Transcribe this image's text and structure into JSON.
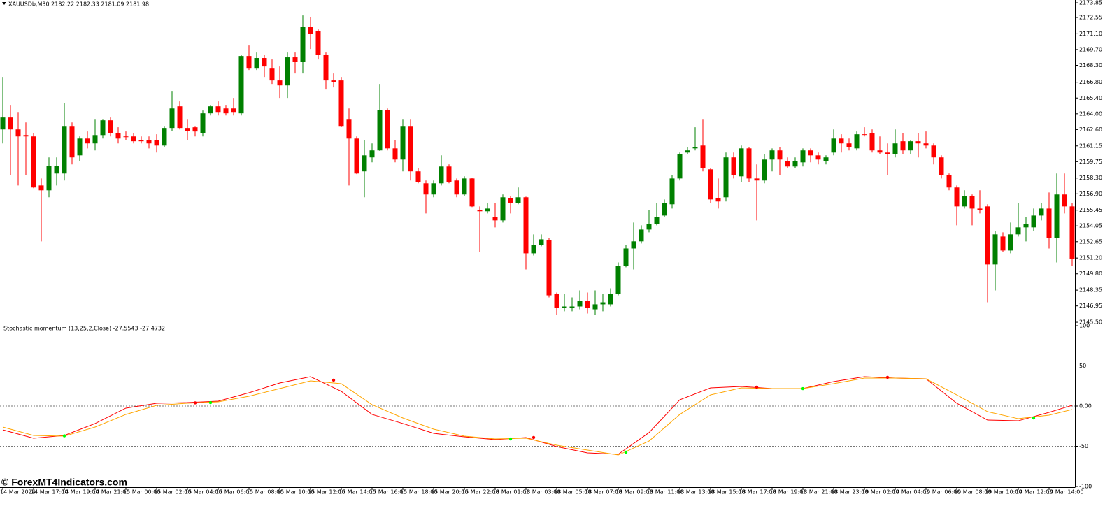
{
  "chart_data": [
    {
      "type": "candlestick",
      "title": "XAUUSDb,M30  2182.22 2182.33 2181.09 2181.98",
      "categories": [
        "14 Mar 2024",
        null,
        null,
        null,
        "14 Mar 17:00",
        null,
        null,
        null,
        "14 Mar 19:00",
        null,
        null,
        null,
        "14 Mar 21:00",
        null,
        null,
        null,
        "15 Mar 00:00",
        null,
        null,
        null,
        "15 Mar 02:00",
        null,
        null,
        null,
        "15 Mar 04:00",
        null,
        null,
        null,
        "15 Mar 06:00",
        null,
        null,
        null,
        "15 Mar 08:00",
        null,
        null,
        null,
        "15 Mar 10:00",
        null,
        null,
        null,
        "15 Mar 12:00",
        null,
        null,
        null,
        "15 Mar 14:00",
        null,
        null,
        null,
        "15 Mar 16:00",
        null,
        null,
        null,
        "15 Mar 18:00",
        null,
        null,
        null,
        "15 Mar 20:00",
        null,
        null,
        null,
        "15 Mar 22:00",
        null,
        null,
        null,
        "18 Mar 01:00",
        null,
        null,
        null,
        "18 Mar 03:00",
        null,
        null,
        null,
        "18 Mar 05:00",
        null,
        null,
        null,
        "18 Mar 07:00",
        null,
        null,
        null,
        "18 Mar 09:00",
        null,
        null,
        null,
        "18 Mar 11:00",
        null,
        null,
        null,
        "18 Mar 13:00",
        null,
        null,
        null,
        "18 Mar 15:00",
        null,
        null,
        null,
        "18 Mar 17:00",
        null,
        null,
        null,
        "18 Mar 19:00",
        null,
        null,
        null,
        "18 Mar 21:00",
        null,
        null,
        null,
        "18 Mar 23:00",
        null,
        null,
        null,
        "19 Mar 02:00",
        null,
        null,
        null,
        "19 Mar 04:00",
        null,
        null,
        null,
        "19 Mar 06:00",
        null,
        null,
        null,
        "19 Mar 08:00",
        null,
        null,
        null,
        "19 Mar 10:00",
        null,
        null,
        null,
        "19 Mar 12:00",
        null,
        null,
        null,
        "19 Mar 14:00",
        null,
        null,
        null
      ],
      "open": [
        2162.61,
        2163.67,
        2162.61,
        2162.11,
        2161.99,
        2157.64,
        2157.21,
        2158.7,
        2158.7,
        2162.92,
        2160.31,
        2161.8,
        2161.37,
        2162.11,
        2163.42,
        2162.3,
        2161.99,
        2161.99,
        2161.68,
        2161.68,
        2161.68,
        2161.18,
        2162.74,
        2164.66,
        2162.74,
        2162.8,
        2162.3,
        2164.04,
        2164.66,
        2164.47,
        2164.47,
        2164.04,
        2169.13,
        2168.01,
        2168.95,
        2168.01,
        2166.96,
        2166.52,
        2169.01,
        2168.64,
        2171.74,
        2171.31,
        2169.26,
        2166.96,
        2166.96,
        2163.54,
        2161.8,
        2158.89,
        2160.13,
        2160.75,
        2164.35,
        2160.93,
        2159.94,
        2162.92,
        2158.89,
        2157.83,
        2156.84,
        2157.83,
        2159.32,
        2158.08,
        2156.84,
        2158.26,
        2155.47,
        2155.35,
        2154.85,
        2154.54,
        2156.53,
        2156.09,
        2156.59,
        2151.62,
        2152.37,
        2152.8,
        2148.02,
        2146.78,
        2146.78,
        2146.9,
        2147.4,
        2146.65,
        2147.09,
        2147.09,
        2148.02,
        2150.5,
        2152.05,
        2152.68,
        2153.73,
        2154.23,
        2154.97,
        2155.97,
        2158.26,
        2160.56,
        2160.93,
        2161.18,
        2159.07,
        2156.53,
        2156.59,
        2160.13,
        2158.45,
        2160.93,
        2158.26,
        2158.08,
        2159.94,
        2160.75,
        2159.82,
        2159.32,
        2159.69,
        2160.75,
        2160.31,
        2159.82,
        2160.56,
        2161.8,
        2161.37,
        2160.93,
        2162.18,
        2162.3,
        2160.75,
        2160.56,
        2160.44,
        2161.56,
        2160.75,
        2161.56,
        2161.37,
        2161.18,
        2160.13,
        2158.58,
        2157.46,
        2155.78,
        2156.71,
        2155.59,
        2155.78,
        2150.63,
        2153.11,
        2151.87,
        2153.3,
        2153.92,
        2153.92,
        2154.97,
        2155.59,
        2152.99,
        2156.84,
        2155.78
      ],
      "high": [
        2167.27,
        2164.79,
        2164.16,
        2163.23,
        2162.3,
        2158.26,
        2160.13,
        2160.13,
        2164.97,
        2163.23,
        2161.99,
        2162.43,
        2163.54,
        2163.54,
        2163.67,
        2162.8,
        2162.43,
        2162.3,
        2161.99,
        2161.99,
        2162.18,
        2162.92,
        2166.03,
        2165.1,
        2163.54,
        2162.92,
        2164.29,
        2164.79,
        2165.1,
        2164.79,
        2165.41,
        2169.26,
        2170.06,
        2169.44,
        2169.26,
        2168.82,
        2168.2,
        2169.44,
        2169.44,
        2172.73,
        2172.55,
        2171.49,
        2169.44,
        2167.58,
        2167.27,
        2164.47,
        2161.99,
        2161.68,
        2161.37,
        2166.65,
        2164.47,
        2161.68,
        2163.54,
        2163.54,
        2159.2,
        2158.08,
        2158.08,
        2160.31,
        2159.51,
        2158.26,
        2158.45,
        2158.3,
        2155.78,
        2156.09,
        2156.09,
        2156.84,
        2156.71,
        2157.46,
        2156.65,
        2153.3,
        2153.3,
        2152.99,
        2148.14,
        2148.02,
        2147.71,
        2148.33,
        2148.14,
        2148.33,
        2148.02,
        2148.51,
        2150.81,
        2152.37,
        2154.35,
        2154.1,
        2155.47,
        2156.09,
        2156.4,
        2158.58,
        2160.56,
        2161.06,
        2162.8,
        2163.54,
        2159.2,
        2158.26,
        2160.56,
        2160.56,
        2161.18,
        2161.06,
        2159.51,
        2160.44,
        2160.93,
        2161.06,
        2160.13,
        2160.13,
        2160.93,
        2160.93,
        2160.56,
        2160.31,
        2162.61,
        2162.18,
        2161.8,
        2162.43,
        2162.8,
        2162.61,
        2161.99,
        2161.37,
        2162.61,
        2162.3,
        2161.68,
        2162.3,
        2162.43,
        2161.37,
        2160.31,
        2158.7,
        2157.64,
        2157.21,
        2156.84,
        2157.21,
        2155.97,
        2153.61,
        2153.48,
        2154.35,
        2156.09,
        2154.85,
        2155.59,
        2156.09,
        2157.02,
        2158.7,
        2158.7,
        2156.09
      ],
      "low": [
        2161.37,
        2158.58,
        2157.64,
        2158.58,
        2157.4,
        2152.68,
        2156.59,
        2157.64,
        2158.08,
        2159.51,
        2159.82,
        2160.93,
        2160.75,
        2161.8,
        2161.99,
        2161.37,
        2161.68,
        2161.37,
        2161.37,
        2160.93,
        2160.56,
        2161.06,
        2162.49,
        2162.61,
        2161.68,
        2161.99,
        2161.99,
        2163.85,
        2163.85,
        2163.85,
        2163.85,
        2163.85,
        2167.89,
        2167.89,
        2167.27,
        2166.65,
        2165.41,
        2165.41,
        2167.58,
        2167.58,
        2169.75,
        2168.82,
        2166.15,
        2166.34,
        2162.85,
        2157.64,
        2158.65,
        2156.59,
        2159.69,
        2160.7,
        2160.75,
        2159.69,
        2158.89,
        2158.08,
        2157.83,
        2155.16,
        2156.59,
        2157.64,
        2157.83,
        2156.59,
        2156.71,
        2155.72,
        2151.74,
        2155.16,
        2153.92,
        2154.35,
        2155.16,
        2155.97,
        2150.19,
        2151.43,
        2152.24,
        2147.71,
        2146.16,
        2146.47,
        2146.47,
        2146.65,
        2146.28,
        2146.16,
        2146.47,
        2146.9,
        2147.89,
        2150.38,
        2150.19,
        2152.49,
        2153.48,
        2154.1,
        2154.85,
        2155.59,
        2158.08,
        2160.44,
        2160.75,
        2158.89,
        2156.09,
        2155.59,
        2156.22,
        2158.26,
        2157.95,
        2157.95,
        2154.54,
        2157.83,
        2158.89,
        2158.58,
        2159.2,
        2159.2,
        2159.32,
        2159.69,
        2159.51,
        2159.51,
        2160.31,
        2160.56,
        2160.75,
        2160.75,
        2161.99,
        2160.56,
        2160.44,
        2158.58,
        2160.13,
        2160.44,
        2160.44,
        2160.13,
        2160.93,
        2159.51,
        2158.26,
        2157.21,
        2154.1,
        2155.59,
        2154.1,
        2155.16,
        2147.27,
        2148.33,
        2151.74,
        2151.62,
        2153.11,
        2152.68,
        2153.61,
        2154.54,
        2152.05,
        2150.81,
        2155.16,
        2150.5
      ],
      "close": [
        2163.67,
        2162.61,
        2161.99,
        2161.99,
        2157.46,
        2157.21,
        2159.38,
        2159.38,
        2162.92,
        2160.13,
        2161.8,
        2161.37,
        2162.11,
        2163.42,
        2162.3,
        2161.8,
        2161.93,
        2161.56,
        2161.56,
        2161.37,
        2161.18,
        2162.74,
        2164.47,
        2162.74,
        2162.49,
        2162.43,
        2164.04,
        2164.66,
        2164.16,
        2164.04,
        2164.16,
        2169.13,
        2168.01,
        2168.95,
        2168.2,
        2166.96,
        2166.52,
        2169.01,
        2168.64,
        2171.74,
        2171.12,
        2169.26,
        2166.96,
        2166.83,
        2162.92,
        2161.8,
        2158.7,
        2160.31,
        2160.75,
        2164.35,
        2160.93,
        2159.94,
        2162.92,
        2158.89,
        2157.95,
        2156.84,
        2157.83,
        2159.32,
        2157.95,
        2156.84,
        2158.26,
        2155.78,
        2155.35,
        2155.59,
        2154.54,
        2156.59,
        2156.09,
        2156.59,
        2151.62,
        2152.37,
        2152.86,
        2147.89,
        2146.78,
        2146.9,
        2146.9,
        2147.4,
        2146.78,
        2147.09,
        2147.27,
        2148.02,
        2150.5,
        2152.05,
        2152.68,
        2153.73,
        2154.23,
        2154.85,
        2156.09,
        2158.26,
        2160.44,
        2160.75,
        2161.06,
        2159.2,
        2156.4,
        2156.22,
        2160.13,
        2158.58,
        2160.93,
        2158.26,
        2158.08,
        2159.94,
        2160.75,
        2159.94,
        2159.32,
        2159.82,
        2160.75,
        2160.31,
        2159.94,
        2160.13,
        2161.8,
        2161.37,
        2161.06,
        2162.18,
        2162.12,
        2160.75,
        2160.56,
        2160.44,
        2161.37,
        2160.75,
        2161.56,
        2161.37,
        2161.18,
        2160.13,
        2158.58,
        2157.46,
        2155.78,
        2156.71,
        2155.59,
        2155.47,
        2150.63,
        2153.3,
        2151.87,
        2153.3,
        2153.92,
        2154.23,
        2154.97,
        2155.59,
        2152.99,
        2156.84,
        2155.78,
        2151.12
      ],
      "up_color": "#008000",
      "down_color": "#ff0000",
      "ylim": [
        2145.38,
        2174.1
      ],
      "yticks": [
        2173.85,
        2172.55,
        {
          "value": 2171.1,
          "label": "2171.10"
        },
        {
          "value": 2169.7,
          "label": "2169.70"
        },
        {
          "value": 2168.3,
          "label": "2168.30"
        },
        {
          "value": 2166.8,
          "label": "2166.80"
        },
        {
          "value": 2165.4,
          "label": "2165.40"
        },
        {
          "value": 2164,
          "label": "2164.00"
        },
        {
          "value": 2162.6,
          "label": "2162.60"
        },
        2161.15,
        2159.75,
        {
          "value": 2158.3,
          "label": "2158.30"
        },
        {
          "value": 2156.9,
          "label": "2156.90"
        },
        2155.45,
        2154.05,
        2152.65,
        {
          "value": 2151.2,
          "label": "2151.20"
        },
        {
          "value": 2149.8,
          "label": "2149.80"
        },
        2148.35,
        2146.95,
        {
          "value": 2145.5,
          "label": "2145.50"
        }
      ]
    },
    {
      "type": "line",
      "title": "Stochastic momentum (13,25,2,Close) -27.5543 -27.4732",
      "x": [
        0,
        4,
        8,
        12,
        16,
        20,
        24,
        28,
        32,
        36,
        40,
        44,
        48,
        52,
        56,
        60,
        64,
        68,
        72,
        76,
        80,
        84,
        88,
        92,
        96,
        100,
        104,
        108,
        112,
        116,
        120,
        124,
        128,
        132,
        136,
        139
      ],
      "series": [
        {
          "color": "#ff0000",
          "values": [
            -29.6,
            -40.0,
            -36.5,
            -21.7,
            -2.6,
            3.5,
            4.3,
            6.1,
            16.5,
            28.7,
            36.5,
            18.3,
            -10.4,
            -21.7,
            -33.9,
            -38.3,
            -41.7,
            -39.1,
            -50.4,
            -58.3,
            -60.0,
            -33.0,
            7.8,
            22.6,
            24.3,
            21.7,
            21.7,
            30.4,
            36.5,
            34.8,
            33.9,
            3.5,
            -17.4,
            -18.3,
            -7.8,
            0.9
          ]
        },
        {
          "color": "#ffa500",
          "values": [
            -26.1,
            -36.5,
            -37.4,
            -26.1,
            -10.4,
            0.9,
            3.5,
            5.2,
            12.2,
            21.7,
            31.3,
            27.8,
            1.7,
            -14.8,
            -28.7,
            -37.4,
            -40.9,
            -40.0,
            -48.7,
            -54.8,
            -60.9,
            -43.5,
            -10.4,
            13.9,
            22.6,
            21.7,
            21.7,
            27.8,
            34.8,
            34.8,
            33.9,
            13.9,
            -7.0,
            -15.7,
            -11.3,
            -4.3
          ]
        }
      ],
      "markers": {
        "x": [
          8,
          25,
          27,
          43,
          66,
          69,
          81,
          98,
          104,
          115,
          134
        ],
        "values": [
          -37,
          4,
          4.3,
          32.2,
          -40.9,
          -39.1,
          -57.4,
          23.5,
          21.7,
          35.7,
          -14.8
        ],
        "colors": [
          "#00ff00",
          "#ff0000",
          "#00ff00",
          "#ff0000",
          "#00ff00",
          "#ff0000",
          "#00ff00",
          "#ff0000",
          "#00ff00",
          "#ff0000",
          "#00ff00"
        ]
      },
      "ylim": [
        -100,
        100
      ],
      "yticks": [
        100,
        50,
        {
          "value": 0,
          "label": "0.00"
        },
        -50,
        -100
      ]
    }
  ],
  "watermark": "© ForexMT4Indicators.com"
}
